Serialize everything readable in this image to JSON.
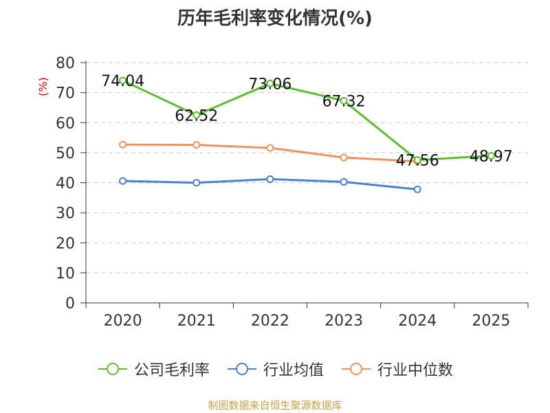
{
  "title": "历年毛利率变化情况(%)",
  "source_note": "制图数据来自恒生聚源数据库",
  "chart_data": {
    "type": "line",
    "title": "历年毛利率变化情况(%)",
    "ylabel": "(%)",
    "xlabel": "",
    "categories": [
      "2020",
      "2021",
      "2022",
      "2023",
      "2024",
      "2025"
    ],
    "ylim": [
      0,
      80
    ],
    "yticks": [
      0,
      10,
      20,
      30,
      40,
      50,
      60,
      70,
      80
    ],
    "grid": true,
    "legend_position": "bottom",
    "series": [
      {
        "name": "公司毛利率",
        "color": "#5cbf2a",
        "values": [
          74.04,
          62.52,
          73.06,
          67.32,
          47.56,
          48.97
        ],
        "labels": [
          "74.04",
          "62.52",
          "73.06",
          "67.32",
          "47.56",
          "48.97"
        ]
      },
      {
        "name": "行业均值",
        "color": "#4a7fd8",
        "values": [
          40.6,
          40.0,
          41.2,
          40.3,
          37.8,
          null
        ]
      },
      {
        "name": "行业中位数",
        "color": "#f0905a",
        "values": [
          52.7,
          52.6,
          51.6,
          48.4,
          47.1,
          null
        ]
      }
    ]
  }
}
